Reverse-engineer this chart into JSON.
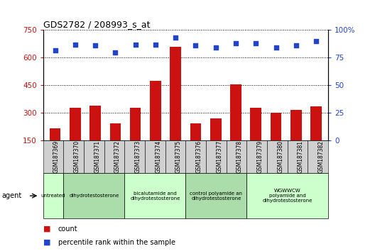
{
  "title": "GDS2782 / 208993_s_at",
  "samples": [
    "GSM187369",
    "GSM187370",
    "GSM187371",
    "GSM187372",
    "GSM187373",
    "GSM187374",
    "GSM187375",
    "GSM187376",
    "GSM187377",
    "GSM187378",
    "GSM187379",
    "GSM187380",
    "GSM187381",
    "GSM187382"
  ],
  "count_values": [
    215,
    330,
    340,
    245,
    330,
    475,
    660,
    245,
    270,
    455,
    330,
    300,
    315,
    335
  ],
  "percentile_values": [
    82,
    87,
    86,
    80,
    87,
    87,
    93,
    86,
    84,
    88,
    88,
    84,
    86,
    90
  ],
  "ylim_left": [
    150,
    750
  ],
  "ylim_right": [
    0,
    100
  ],
  "yticks_left": [
    150,
    300,
    450,
    600,
    750
  ],
  "yticks_right": [
    0,
    25,
    50,
    75,
    100
  ],
  "bar_color": "#cc1111",
  "dot_color": "#2244cc",
  "agent_groups": [
    {
      "label": "untreated",
      "start": 0,
      "end": 1,
      "color": "#ccffcc"
    },
    {
      "label": "dihydrotestosterone",
      "start": 1,
      "end": 4,
      "color": "#aaddaa"
    },
    {
      "label": "bicalutamide and\ndihydrotestosterone",
      "start": 4,
      "end": 7,
      "color": "#ccffcc"
    },
    {
      "label": "control polyamide an\ndihydrotestosterone",
      "start": 7,
      "end": 10,
      "color": "#aaddaa"
    },
    {
      "label": "WGWWCW\npolyamide and\ndihydrotestosterone",
      "start": 10,
      "end": 14,
      "color": "#ccffcc"
    }
  ],
  "legend_count_color": "#cc1111",
  "legend_dot_color": "#2244cc",
  "left_axis_color": "#cc1111",
  "right_axis_color": "#2244cc",
  "xtick_bg_color": "#d0d0d0",
  "figsize": [
    5.28,
    3.54
  ],
  "dpi": 100
}
